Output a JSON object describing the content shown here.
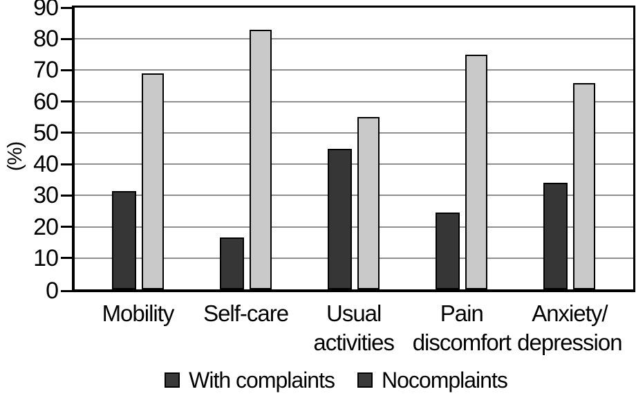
{
  "figure": {
    "background": "#ffffff"
  },
  "chart_data": {
    "type": "bar",
    "title": "",
    "xlabel": "",
    "ylabel": "(%)",
    "ylim": [
      0,
      90
    ],
    "ytick_step": 10,
    "yticks": [
      0,
      10,
      20,
      30,
      40,
      50,
      60,
      70,
      80,
      90
    ],
    "grid": "horizontal",
    "legend_position": "bottom",
    "categories": [
      "Mobility",
      "Self-care",
      "Usual activities",
      "Pain discomfort",
      "Anxiety/depression"
    ],
    "category_label_lines": [
      [
        "Mobility"
      ],
      [
        "Self-care"
      ],
      [
        "Usual",
        "activities"
      ],
      [
        "Pain",
        "discomfort"
      ],
      [
        "Anxiety/",
        "depression"
      ]
    ],
    "series": [
      {
        "name": "With complaints",
        "color": "#363636",
        "legend_swatch_color": "#3a3a3a",
        "values": [
          31.5,
          16.5,
          45,
          24.5,
          34
        ]
      },
      {
        "name": "Nocomplaints",
        "color": "#c9c9c9",
        "legend_swatch_color": "#3a3a3a",
        "values": [
          69,
          83,
          55,
          75,
          66
        ]
      }
    ],
    "colors": {
      "bar_border": "#000000",
      "gridline": "#8f8f8f",
      "frame": "#000000",
      "text": "#000000"
    }
  }
}
